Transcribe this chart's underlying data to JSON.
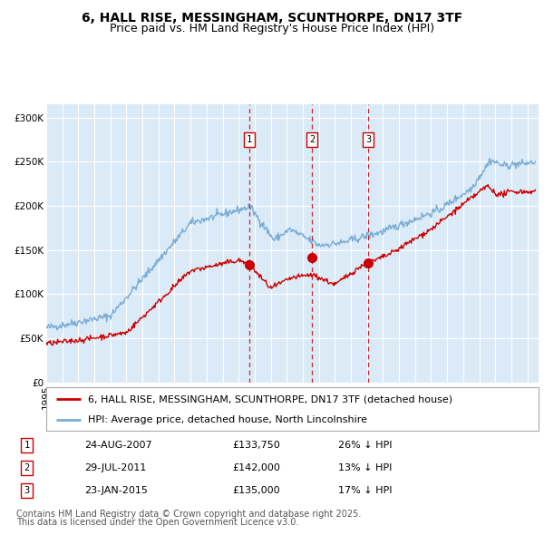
{
  "title": "6, HALL RISE, MESSINGHAM, SCUNTHORPE, DN17 3TF",
  "subtitle": "Price paid vs. HM Land Registry's House Price Index (HPI)",
  "ylabel_ticks": [
    "£0",
    "£50K",
    "£100K",
    "£150K",
    "£200K",
    "£250K",
    "£300K"
  ],
  "ytick_vals": [
    0,
    50000,
    100000,
    150000,
    200000,
    250000,
    300000
  ],
  "ylim": [
    0,
    315000
  ],
  "xlim_start": 1995.0,
  "xlim_end": 2025.7,
  "background_color": "#ffffff",
  "plot_bg_color": "#dbeaf7",
  "grid_color": "#ffffff",
  "hpi_color": "#7aadd4",
  "price_color": "#cc0000",
  "sale_marker_color": "#cc0000",
  "dashed_line_color": "#cc0000",
  "legend_line1": "6, HALL RISE, MESSINGHAM, SCUNTHORPE, DN17 3TF (detached house)",
  "legend_line2": "HPI: Average price, detached house, North Lincolnshire",
  "sales": [
    {
      "label": "1",
      "date_num": 2007.65,
      "price": 133750,
      "date_str": "24-AUG-2007",
      "pct": "26%",
      "dir": "↓"
    },
    {
      "label": "2",
      "date_num": 2011.58,
      "price": 142000,
      "date_str": "29-JUL-2011",
      "pct": "13%",
      "dir": "↓"
    },
    {
      "label": "3",
      "date_num": 2015.07,
      "price": 135000,
      "date_str": "23-JAN-2015",
      "pct": "17%",
      "dir": "↓"
    }
  ],
  "footnote1": "Contains HM Land Registry data © Crown copyright and database right 2025.",
  "footnote2": "This data is licensed under the Open Government Licence v3.0.",
  "title_fontsize": 10,
  "subtitle_fontsize": 9,
  "tick_fontsize": 7.5,
  "legend_fontsize": 8,
  "footnote_fontsize": 7
}
